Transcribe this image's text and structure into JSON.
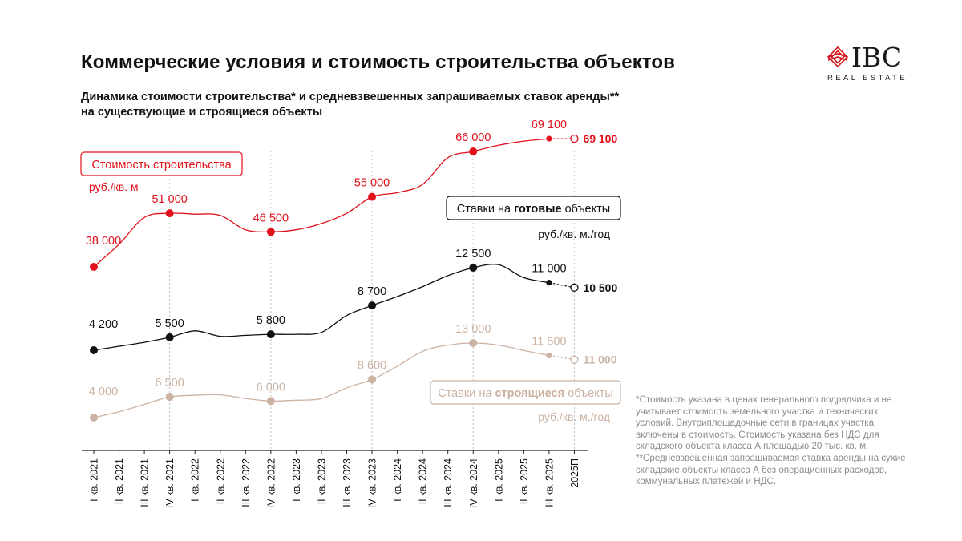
{
  "header": {
    "title": "Коммерческие условия и стоимость строительства объектов",
    "subtitle_line1": "Динамика стоимости строительства* и средневзвешенных запрашиваемых ставок аренды**",
    "subtitle_line2": "на существующие и строящиеся объекты"
  },
  "logo": {
    "name": "IBC",
    "tagline": "REAL ESTATE",
    "color": "#d7141a"
  },
  "chart_data": {
    "type": "line",
    "categories": [
      "I кв. 2021",
      "II кв. 2021",
      "III кв. 2021",
      "IV кв. 2021",
      "I кв. 2022",
      "II кв. 2022",
      "III кв. 2022",
      "IV кв. 2022",
      "I кв. 2023",
      "II кв. 2023",
      "III кв. 2023",
      "IV кв. 2023",
      "I кв. 2024",
      "II кв. 2024",
      "III кв. 2024",
      "IV кв. 2024",
      "I кв. 2025",
      "II кв. 2025",
      "III кв. 2025",
      "2025П"
    ],
    "series": [
      {
        "name": "Стоимость строительства",
        "unit": "руб./кв. м",
        "color": "#e2101a",
        "values": [
          38000,
          43500,
          50000,
          51000,
          50800,
          50500,
          47000,
          46500,
          47000,
          48500,
          51000,
          55000,
          56000,
          58000,
          64500,
          66000,
          67500,
          68500,
          69100,
          69100
        ],
        "markers": [
          {
            "index": 0,
            "label": "38 000"
          },
          {
            "index": 3,
            "label": "51 000"
          },
          {
            "index": 7,
            "label": "46 500"
          },
          {
            "index": 11,
            "label": "55 000"
          },
          {
            "index": 15,
            "label": "66 000"
          },
          {
            "index": 18,
            "label": "69 100"
          }
        ],
        "forecast_label": "69 100"
      },
      {
        "name": "Ставки на готовые объекты",
        "name_prefix": "Ставки на ",
        "name_bold": "готовые",
        "name_suffix": " объекты",
        "unit": "руб./кв. м./год",
        "color": "#111111",
        "values": [
          4200,
          4600,
          5000,
          5500,
          6150,
          5600,
          5700,
          5800,
          5800,
          6000,
          7700,
          8700,
          9600,
          10600,
          11700,
          12500,
          12800,
          11500,
          11000,
          10500
        ],
        "markers": [
          {
            "index": 0,
            "label": "4 200"
          },
          {
            "index": 3,
            "label": "5 500"
          },
          {
            "index": 7,
            "label": "5 800"
          },
          {
            "index": 11,
            "label": "8 700"
          },
          {
            "index": 15,
            "label": "12 500"
          },
          {
            "index": 18,
            "label": "11 000"
          }
        ],
        "forecast_label": "10 500"
      },
      {
        "name": "Ставки на строящиеся объекты",
        "name_prefix": "Ставки на ",
        "name_bold": "строящиеся",
        "name_suffix": " объекты",
        "unit": "руб./кв. м./год",
        "color": "#cbb2a2",
        "values": [
          4000,
          4700,
          5600,
          6500,
          6700,
          6750,
          6300,
          6000,
          6100,
          6300,
          7600,
          8600,
          10200,
          12000,
          12750,
          13000,
          12750,
          12100,
          11500,
          11000
        ],
        "markers": [
          {
            "index": 0,
            "label": "4 000"
          },
          {
            "index": 3,
            "label": "6 500"
          },
          {
            "index": 7,
            "label": "6 000"
          },
          {
            "index": 11,
            "label": "8 600"
          },
          {
            "index": 15,
            "label": "13 000"
          },
          {
            "index": 18,
            "label": "11 500"
          }
        ],
        "forecast_label": "11 000"
      }
    ],
    "grid": "vertical dashed at marked quarters",
    "legend": "inline boxed labels"
  },
  "footnotes": {
    "note1": "*Стоимость указана в ценах генерального подрядчика и не учитывает стоимость земельного участка и технических условий.  Внутриплощадочные сети в границах участка включены в стоимость. Стоимость указана без НДС для складского объекта класса А площадью 20 тыс. кв. м.",
    "note2": "**Средневзвешенная запрашиваемая ставка аренды на сухие складские объекты класса А без операционных расходов, коммунальных платежей и НДС."
  }
}
